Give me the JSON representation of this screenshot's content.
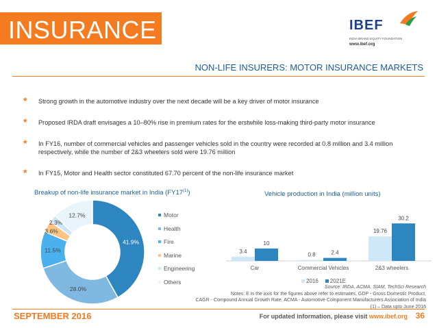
{
  "header": {
    "title": "INSURANCE",
    "subtitle": "NON-LIFE INSURERS: MOTOR INSURANCE MARKETS",
    "logo": {
      "name": "IBEF",
      "tagline": "INDIA BRAND EQUITY FOUNDATION",
      "url": "www.ibef.org"
    }
  },
  "bullets": [
    "Strong growth in the automotive industry over the next decade will be a key driver of motor insurance",
    "Proposed IRDA draft envisages a 10–80% rise in premium rates for the erstwhile loss-making third-party motor insurance",
    "In FY16, number of commercial vehicles and passenger vehicles sold in the country were recorded at 0.8 million and 3.4 million respectively, while the number of 2&3 wheelers sold were 19.76 million",
    "In FY15, Motor and Health sector constituted 67.70 percent of the non-life insurance market"
  ],
  "colors": {
    "accent": "#f47b20",
    "title_blue": "#1c5d99"
  },
  "chart_data": [
    {
      "type": "pie",
      "title": "Breakup of non-life insurance market in India (FY17",
      "title_sup": "(1)",
      "title_end": ")",
      "categories": [
        "Motor",
        "Health",
        "Fire",
        "Marine",
        "Engineering",
        "Others"
      ],
      "values": [
        41.9,
        28.0,
        11.5,
        3.6,
        2.3,
        12.7
      ],
      "labels": [
        "41.9%",
        "28.0%",
        "11.5%",
        "3.6%",
        "2.3%",
        "12.7%"
      ],
      "colors": [
        "#2e86c1",
        "#7fb8e0",
        "#4ab1ee",
        "#fbc585",
        "#cce6f7",
        "#eaf4fb"
      ],
      "legend": "right"
    },
    {
      "type": "bar",
      "title": "Vehicle production in India (million units)",
      "categories": [
        "Car",
        "Commercial Vehicles",
        "2&3 wheelers"
      ],
      "series": [
        {
          "name": "2016",
          "values": [
            3.4,
            0.8,
            19.76
          ],
          "labels": [
            "3.4",
            "0.8",
            "19.76"
          ],
          "color": "#cfe8f8"
        },
        {
          "name": "2021E",
          "values": [
            10,
            2.4,
            30.2
          ],
          "labels": [
            "10",
            "2.4",
            "30.2"
          ],
          "color": "#2e86c1"
        }
      ],
      "ylim": [
        0,
        32
      ],
      "legend": "bottom"
    }
  ],
  "notes": {
    "source_label": "Source:",
    "source_text": " IRDA, ACMA, SIAM, TechSci Research",
    "line1": "Notes: E in the axis for the figures above refer to estimates, GDP - Gross Domestic Product,",
    "line2": "CAGR - Compound Annual Growth Rate, ACMA - Automotive Component Manufacturers Association of India",
    "line3": "(1) – Data upto June 2016"
  },
  "footer": {
    "date": "SEPTEMBER 2016",
    "text": "For updated information, please visit ",
    "url": "www.ibef.org",
    "page": "36"
  }
}
